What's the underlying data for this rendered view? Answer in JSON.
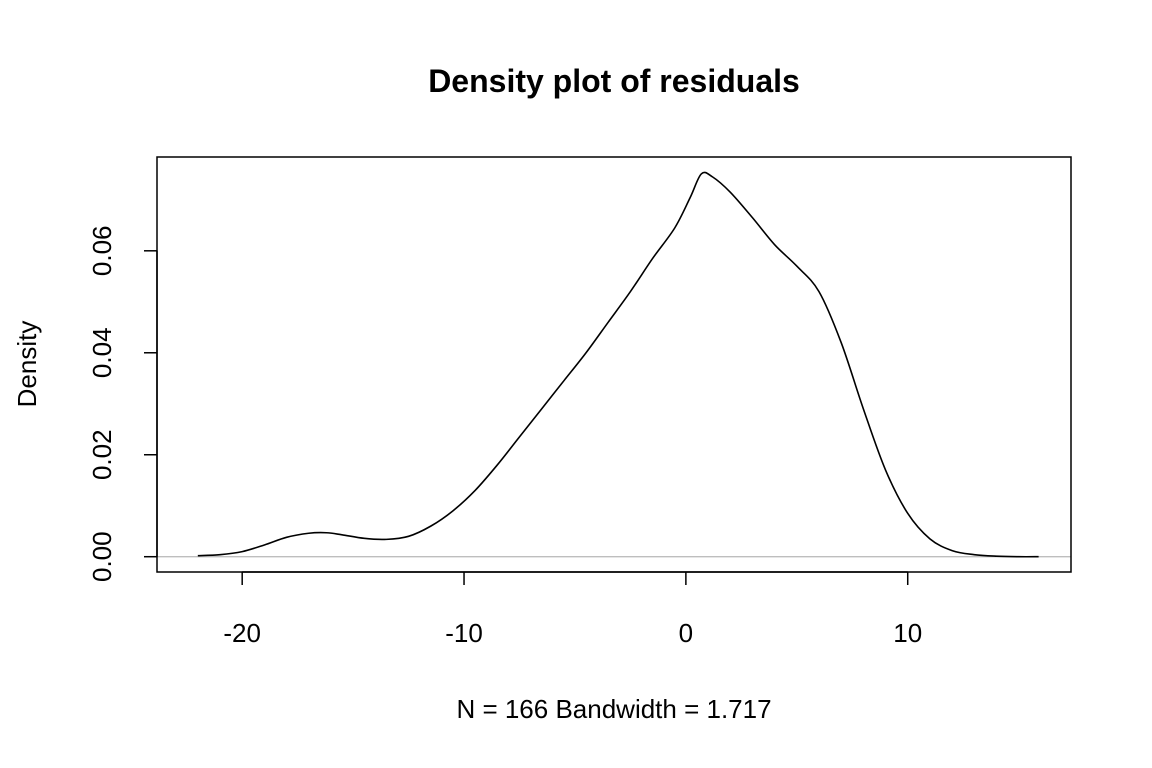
{
  "chart_data": {
    "type": "line",
    "title": "Density plot of residuals",
    "xlabel": "N = 166   Bandwidth = 1.717",
    "ylabel": "Density",
    "xlim": [
      -23.84,
      17.36
    ],
    "ylim": [
      -0.003,
      0.0784
    ],
    "x_ticks": [
      -20,
      -10,
      0,
      10
    ],
    "x_tick_labels": [
      "-20",
      "-10",
      "0",
      "10"
    ],
    "y_ticks": [
      0.0,
      0.02,
      0.04,
      0.06
    ],
    "y_tick_labels": [
      "0.00",
      "0.02",
      "0.04",
      "0.06"
    ],
    "grid": false,
    "baseline": 0,
    "series": [
      {
        "x": [
          -22.0,
          -21.0,
          -20.0,
          -19.0,
          -18.0,
          -17.0,
          -16.2,
          -15.5,
          -14.5,
          -13.5,
          -12.5,
          -11.5,
          -10.5,
          -9.5,
          -8.5,
          -7.5,
          -6.5,
          -5.5,
          -4.5,
          -3.5,
          -2.5,
          -1.5,
          -0.5,
          0.2,
          0.7,
          1.2,
          2.0,
          3.0,
          4.0,
          5.0,
          6.0,
          7.0,
          8.0,
          9.0,
          10.0,
          11.0,
          12.0,
          13.0,
          14.0,
          15.0,
          15.9
        ],
        "y": [
          0.0002,
          0.0004,
          0.001,
          0.0023,
          0.0038,
          0.0046,
          0.0047,
          0.0043,
          0.0036,
          0.0034,
          0.004,
          0.006,
          0.009,
          0.013,
          0.018,
          0.0235,
          0.029,
          0.0345,
          0.04,
          0.046,
          0.052,
          0.0585,
          0.0645,
          0.0705,
          0.0751,
          0.0745,
          0.0715,
          0.0665,
          0.0612,
          0.057,
          0.052,
          0.042,
          0.029,
          0.017,
          0.0085,
          0.0035,
          0.0012,
          0.0004,
          0.0001,
          0.0,
          0.0
        ]
      }
    ]
  }
}
